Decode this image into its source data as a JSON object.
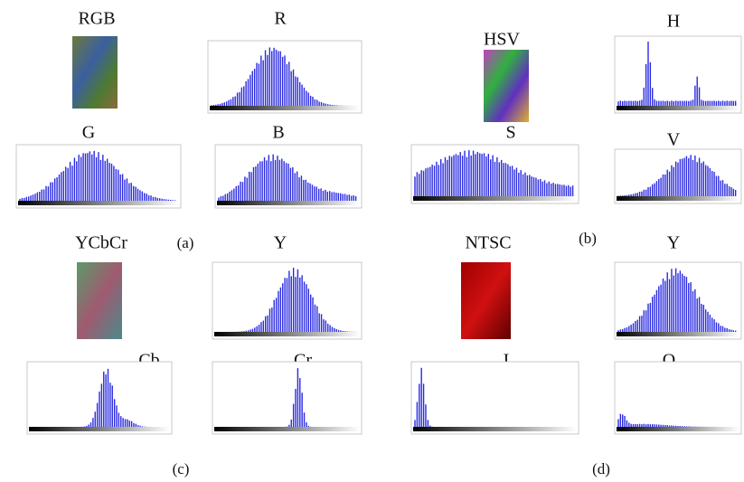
{
  "panels": [
    {
      "label": "(a)",
      "image_title": "RGB",
      "histograms": [
        "R",
        "G",
        "B"
      ]
    },
    {
      "label": "(b)",
      "image_title": "HSV",
      "histograms": [
        "H",
        "S",
        "V"
      ]
    },
    {
      "label": "(c)",
      "image_title": "YCbCr",
      "histograms": [
        "Y",
        "Cb",
        "Cr"
      ]
    },
    {
      "label": "(d)",
      "image_title": "NTSC",
      "histograms": [
        "Y",
        "I",
        "Q"
      ]
    }
  ]
}
